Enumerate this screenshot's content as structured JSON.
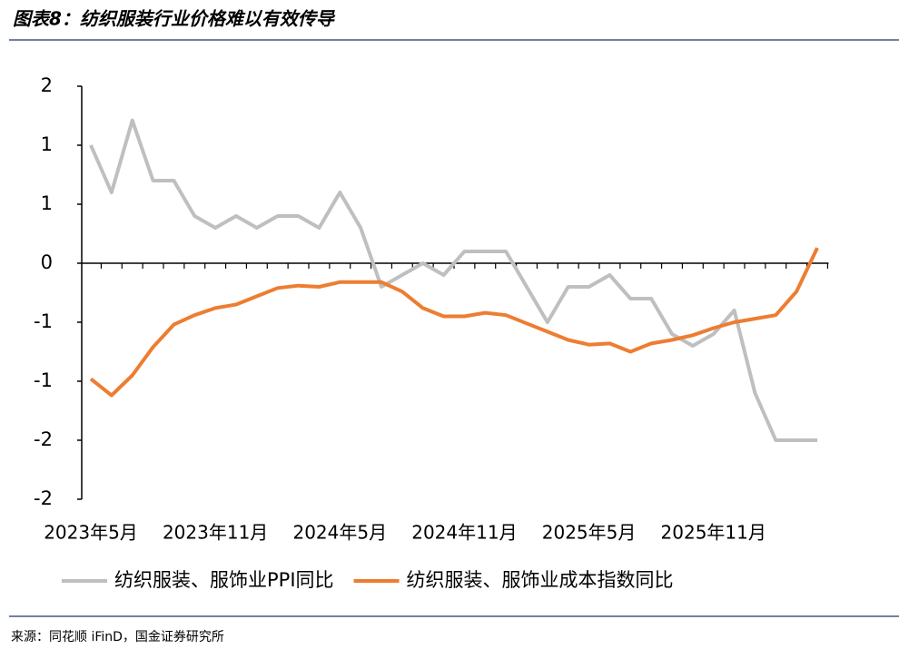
{
  "chart_data": {
    "type": "line",
    "title": "图表8：纺织服装行业价格难以有效传导",
    "source": "来源：同花顺 iFinD，国金证券研究所",
    "categories": [
      "2023年5月",
      null,
      null,
      null,
      null,
      null,
      "2023年11月",
      null,
      null,
      null,
      null,
      null,
      "2024年5月",
      null,
      null,
      null,
      null,
      null,
      "2024年11月",
      null,
      null,
      null,
      null,
      null,
      "2025年5月",
      null,
      null,
      null,
      null,
      null,
      "2025年11月",
      null,
      null,
      null,
      null,
      null
    ],
    "ylim": [
      -2,
      1.5
    ],
    "yticks": [
      {
        "value": 1.5,
        "label": "2"
      },
      {
        "value": 1,
        "label": "1"
      },
      {
        "value": 0.5,
        "label": "1"
      },
      0,
      {
        "value": -0.5,
        "label": "-1"
      },
      {
        "value": -1,
        "label": "-1"
      },
      {
        "value": -1.5,
        "label": "-2"
      },
      {
        "value": -2,
        "label": "-2"
      }
    ],
    "legend": "bottom",
    "series": [
      {
        "name": "纺织服装、服饰业PPI同比",
        "color": "#bfbfbf",
        "values": [
          1.0,
          0.6,
          1.21,
          0.7,
          0.7,
          0.4,
          0.3,
          0.4,
          0.3,
          0.4,
          0.4,
          0.3,
          0.6,
          0.3,
          -0.2,
          -0.1,
          0,
          -0.1,
          0.1,
          0.1,
          0.1,
          -0.2,
          -0.5,
          -0.2,
          -0.2,
          -0.1,
          -0.3,
          -0.3,
          -0.6,
          -0.7,
          -0.6,
          -0.4,
          -1.1,
          -1.5,
          -1.5,
          -1.5
        ]
      },
      {
        "name": "纺织服装、服饰业成本指数同比",
        "color": "#ed7d31",
        "values": [
          -0.98,
          -1.12,
          -0.95,
          -0.71,
          -0.52,
          -0.44,
          -0.38,
          -0.35,
          -0.28,
          -0.21,
          -0.19,
          -0.2,
          -0.16,
          -0.16,
          -0.16,
          -0.24,
          -0.38,
          -0.45,
          -0.45,
          -0.42,
          -0.44,
          -0.51,
          -0.58,
          -0.65,
          -0.69,
          -0.68,
          -0.75,
          -0.68,
          -0.65,
          -0.61,
          -0.55,
          -0.5,
          -0.47,
          -0.44,
          -0.24,
          0.13
        ]
      }
    ]
  }
}
